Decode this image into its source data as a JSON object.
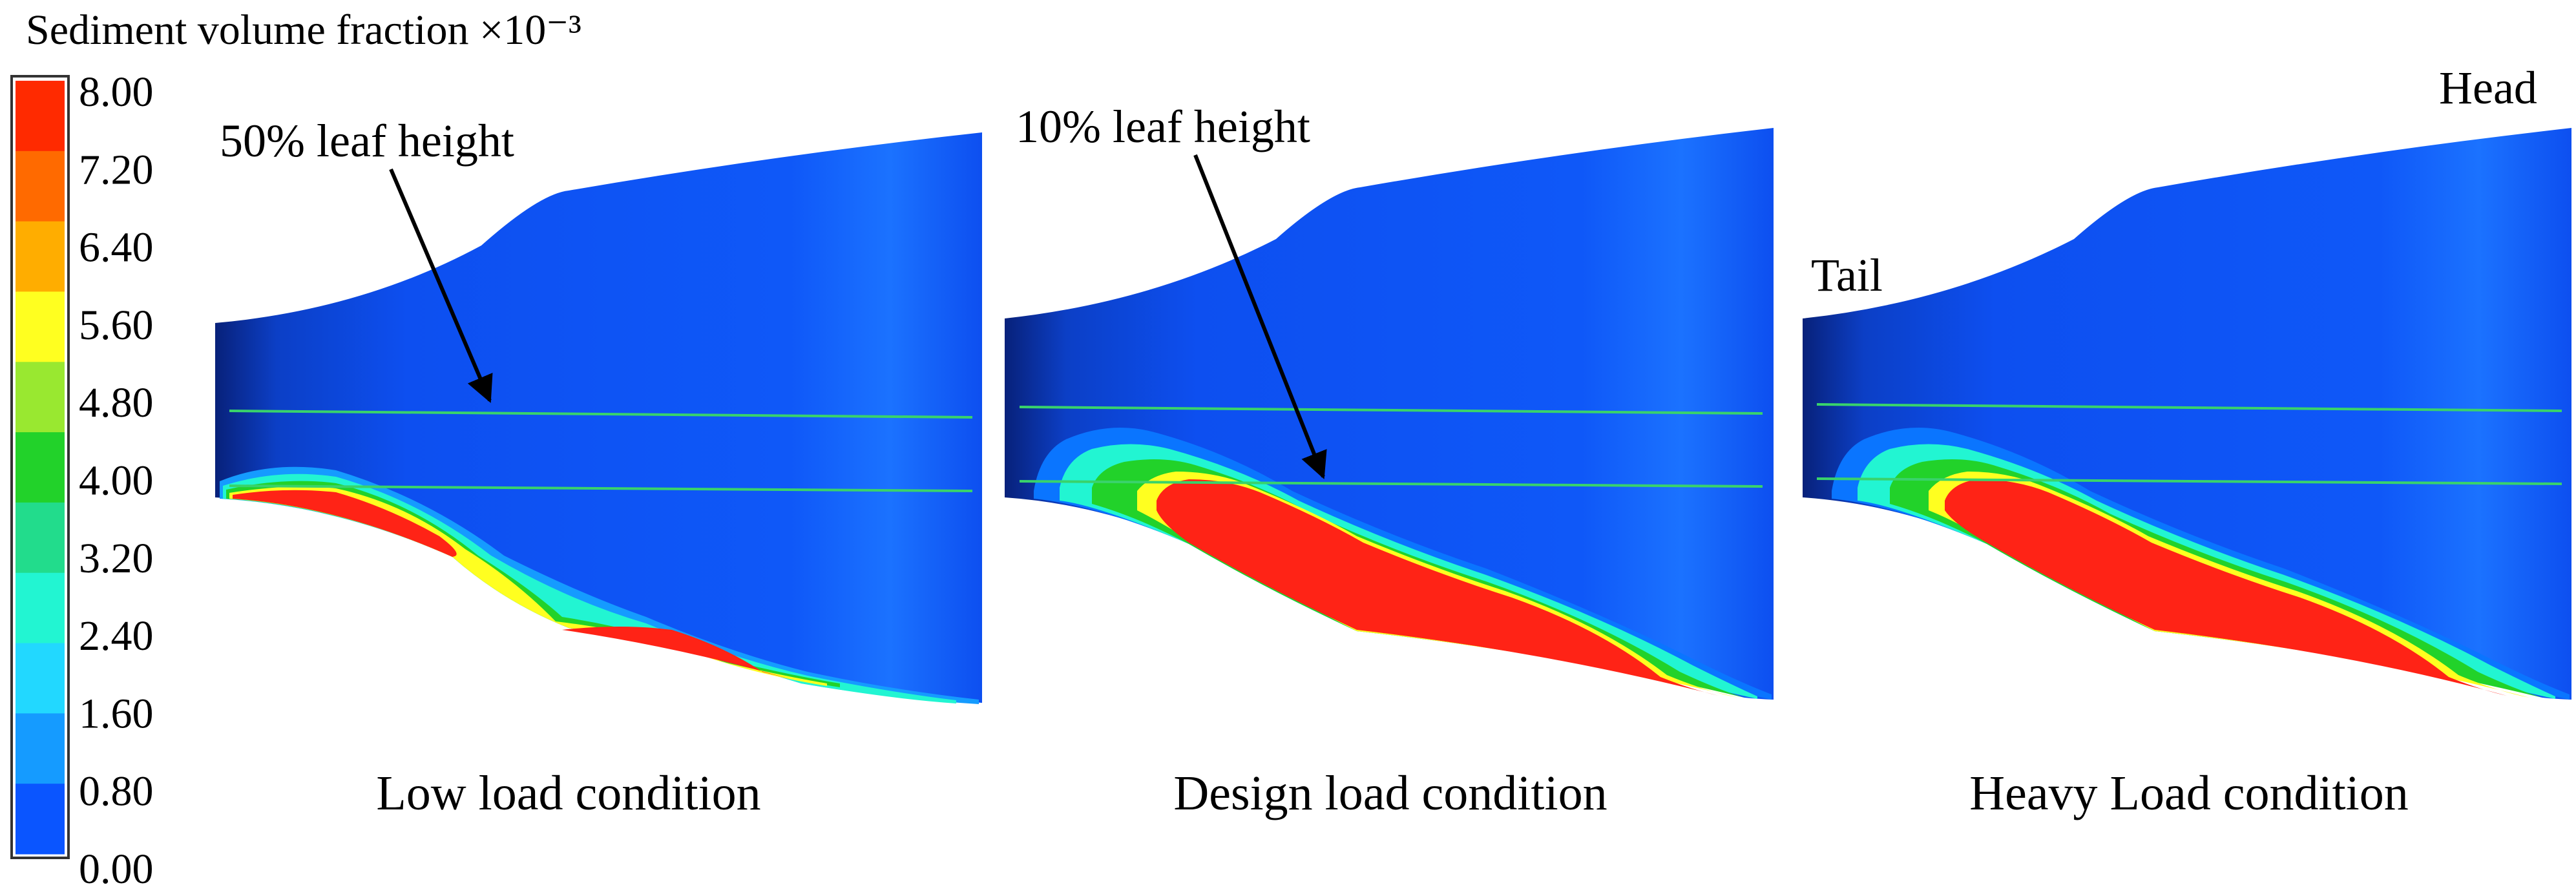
{
  "legend": {
    "title": "Sediment volume fraction ×10⁻³",
    "ticks": [
      "8.00",
      "7.20",
      "6.40",
      "5.60",
      "4.80",
      "4.00",
      "3.20",
      "2.40",
      "1.60",
      "0.80",
      "0.00"
    ],
    "colors": [
      "#ff2a00",
      "#ff6a00",
      "#ffad00",
      "#ffff20",
      "#99e830",
      "#22d22a",
      "#22dc8c",
      "#22f5d2",
      "#22d8ff",
      "#159bff",
      "#0a55ff"
    ]
  },
  "panels": [
    {
      "caption": "Low load condition",
      "annotation": "50% leaf height"
    },
    {
      "caption": "Design load condition",
      "annotation": "10% leaf height"
    },
    {
      "caption": "Heavy Load condition",
      "tail_label": "Tail",
      "head_label": "Head"
    }
  ],
  "colors": {
    "blade_blue": "#0d4ff0",
    "blade_dark": "#08217a",
    "sediment_red": "#ff2316",
    "section_line": "#39d36b"
  }
}
